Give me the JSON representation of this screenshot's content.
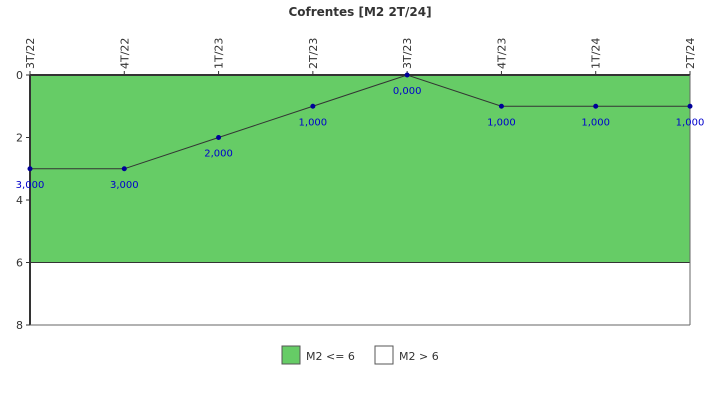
{
  "chart_data": {
    "type": "line",
    "title": "Cofrentes [M2 2T/24]",
    "categories": [
      "3T/22",
      "4T/22",
      "1T/23",
      "2T/23",
      "3T/23",
      "4T/23",
      "1T/24",
      "2T/24"
    ],
    "series": [
      {
        "values": [
          3,
          3,
          2,
          1,
          0,
          1,
          1,
          1
        ],
        "labels": [
          "3,000",
          "3,000",
          "2,000",
          "1,000",
          "0,000",
          "1,000",
          "1,000",
          "1,000"
        ]
      }
    ],
    "ylim": [
      0,
      8
    ],
    "y_inverted": true,
    "y_ticks": [
      "0",
      "2",
      "4",
      "6",
      "8"
    ],
    "threshold": 6,
    "x_axis_position": "top",
    "grid": false,
    "legend": {
      "placement": "bottom-center",
      "items": [
        {
          "label": "M2 <= 6",
          "color": "#66cc66"
        },
        {
          "label": "M2 > 6",
          "color": "#ffffff"
        }
      ]
    },
    "colors": {
      "line": "#333333",
      "marker": "#000099",
      "data_label": "#0000cc",
      "band": "#66cc66"
    }
  }
}
